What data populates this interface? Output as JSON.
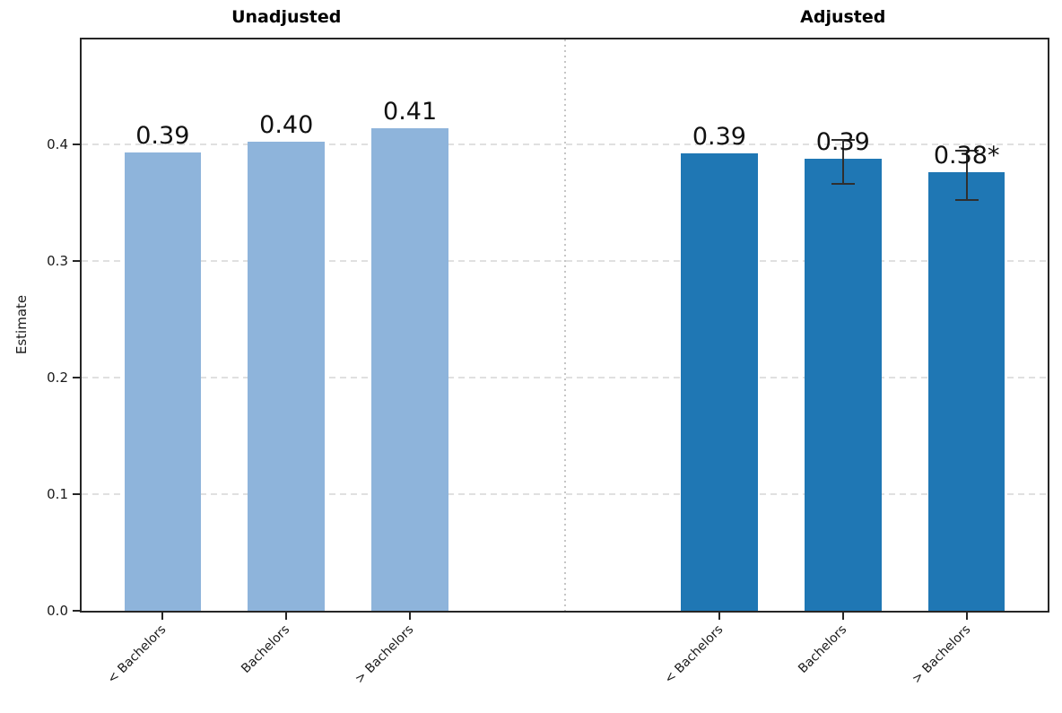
{
  "figure": {
    "colors": {
      "unadjusted_bar": "#8eb4db",
      "adjusted_bar": "#1f77b4",
      "grid": "#e0e0e0",
      "divider": "#c6c6c6",
      "spine": "#262626",
      "error": "#2f2f2f",
      "text": "#1a1a1a",
      "value_text": "#111111"
    }
  },
  "chart_data": {
    "type": "bar",
    "ylabel": "Estimate",
    "ylim": [
      0,
      0.49
    ],
    "xlim": [
      -0.655,
      7.155
    ],
    "bar_width": 0.62,
    "divider_x": 3.25,
    "grid": "horizontal-dashed",
    "legend": "none",
    "yticks": [
      {
        "label": "0.0",
        "value": 0.0
      },
      {
        "label": "0.1",
        "value": 0.1
      },
      {
        "label": "0.2",
        "value": 0.2
      },
      {
        "label": "0.3",
        "value": 0.3
      },
      {
        "label": "0.4",
        "value": 0.4
      }
    ],
    "panels": [
      {
        "title": "Unadjusted",
        "color_key": "unadjusted_bar",
        "categories": [
          "< Bachelors",
          "Bachelors",
          "> Bachelors"
        ],
        "bars": [
          {
            "category": "< Bachelors",
            "label": "0.39",
            "value": 0.393,
            "x": 0,
            "error": null
          },
          {
            "category": "Bachelors",
            "label": "0.40",
            "value": 0.402,
            "x": 1,
            "error": null
          },
          {
            "category": "> Bachelors",
            "label": "0.41",
            "value": 0.414,
            "x": 2,
            "error": null
          }
        ]
      },
      {
        "title": "Adjusted",
        "color_key": "adjusted_bar",
        "categories": [
          "< Bachelors",
          "Bachelors",
          "> Bachelors"
        ],
        "bars": [
          {
            "category": "< Bachelors",
            "label": "0.39",
            "value": 0.392,
            "x": 4.5,
            "error": null
          },
          {
            "category": "Bachelors",
            "label": "0.39",
            "value": 0.388,
            "x": 5.5,
            "error": [
              0.366,
              0.404
            ]
          },
          {
            "category": "> Bachelors",
            "label": "0.38*",
            "value": 0.376,
            "x": 6.5,
            "error": [
              0.352,
              0.395
            ]
          }
        ]
      }
    ]
  }
}
